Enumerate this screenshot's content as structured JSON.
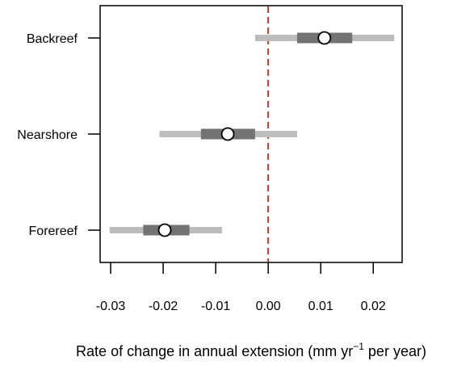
{
  "chart_data": {
    "type": "forest",
    "title": "",
    "xlabel": {
      "main": "Rate of change in annual extension (mm yr",
      "superscript": "−1",
      "suffix": " per year)"
    },
    "ylabel": "",
    "xlim": [
      -0.032,
      0.0255
    ],
    "xticks": [
      -0.03,
      -0.02,
      -0.01,
      0.0,
      0.01,
      0.02
    ],
    "xtick_labels": [
      "-0.03",
      "-0.02",
      "-0.01",
      "0.00",
      "0.01",
      "0.02"
    ],
    "categories": [
      "Backreef",
      "Nearshore",
      "Forereef"
    ],
    "series": [
      {
        "category": "Backreef",
        "estimate": 0.0107,
        "inner": [
          0.0055,
          0.016
        ],
        "outer": [
          -0.0025,
          0.024
        ]
      },
      {
        "category": "Nearshore",
        "estimate": -0.0077,
        "inner": [
          -0.0128,
          -0.0025
        ],
        "outer": [
          -0.0207,
          0.0055
        ]
      },
      {
        "category": "Forereef",
        "estimate": -0.0197,
        "inner": [
          -0.0238,
          -0.015
        ],
        "outer": [
          -0.0302,
          -0.0088
        ]
      }
    ],
    "reference_line": {
      "x": 0.0,
      "style": "dashed",
      "color": "#c0392b"
    },
    "colors": {
      "outer_interval": "#bdbdbd",
      "inner_interval": "#737373",
      "point_fill": "#ffffff",
      "point_stroke": "#000000",
      "axis": "#000000"
    },
    "grid": false,
    "legend": "none"
  }
}
